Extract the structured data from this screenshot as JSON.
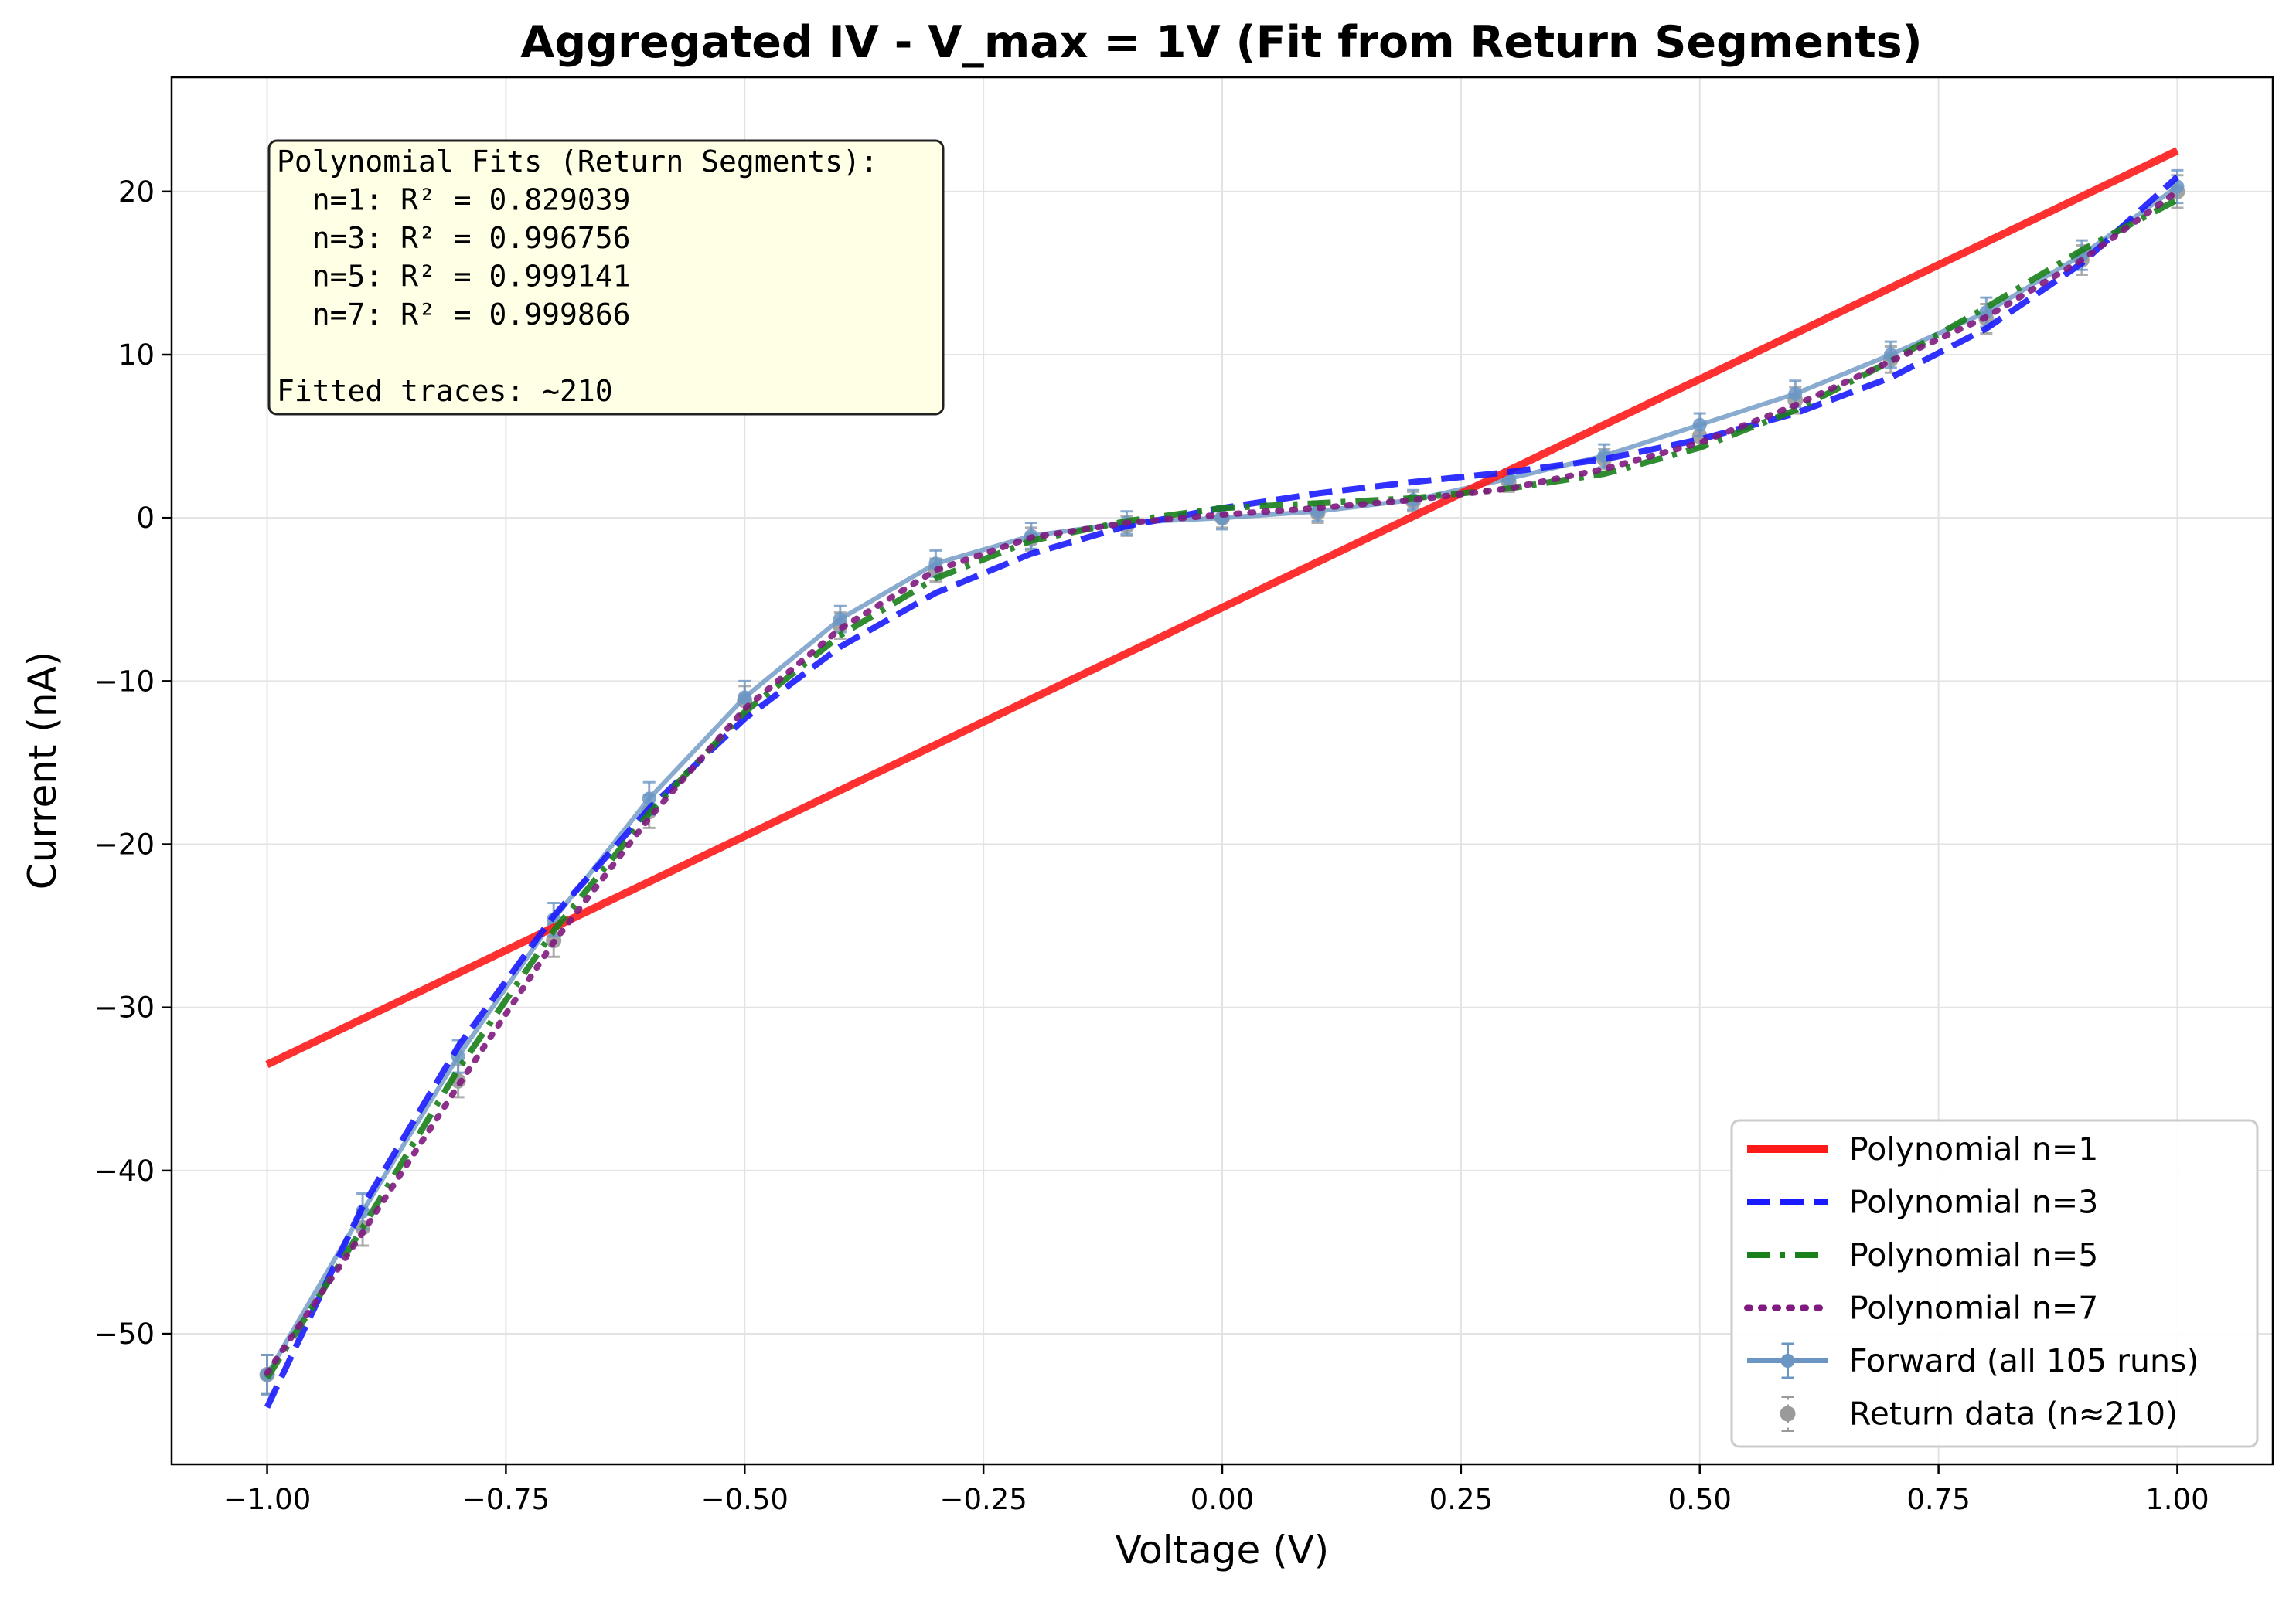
{
  "chart_data": {
    "type": "line",
    "title": "Aggregated IV - V_max = 1V (Fit from Return Segments)",
    "xlabel": "Voltage (V)",
    "ylabel": "Current (nA)",
    "xlim": [
      -1.1,
      1.1
    ],
    "ylim": [
      -58,
      27
    ],
    "xticks": [
      -1.0,
      -0.75,
      -0.5,
      -0.25,
      0.0,
      0.25,
      0.5,
      0.75,
      1.0
    ],
    "xtick_labels": [
      "−1.00",
      "−0.75",
      "−0.50",
      "−0.25",
      "0.00",
      "0.25",
      "0.50",
      "0.75",
      "1.00"
    ],
    "yticks": [
      -50,
      -40,
      -30,
      -20,
      -10,
      0,
      10,
      20
    ],
    "ytick_labels": [
      "−50",
      "−40",
      "−30",
      "−20",
      "−10",
      "0",
      "10",
      "20"
    ],
    "grid": true,
    "legend_position": "lower-right",
    "x": [
      -1.0,
      -0.9,
      -0.8,
      -0.7,
      -0.6,
      -0.5,
      -0.4,
      -0.3,
      -0.2,
      -0.1,
      0.0,
      0.1,
      0.2,
      0.3,
      0.4,
      0.5,
      0.6,
      0.7,
      0.8,
      0.9,
      1.0
    ],
    "series": [
      {
        "name": "Polynomial n=1",
        "style": "solid",
        "color": "#ff1a1a",
        "values": [
          -33.5,
          -30.7,
          -27.9,
          -25.1,
          -22.3,
          -19.5,
          -16.7,
          -13.9,
          -11.1,
          -8.3,
          -5.5,
          -2.7,
          0.1,
          2.9,
          5.7,
          8.5,
          11.3,
          14.1,
          16.9,
          19.7,
          22.5
        ]
      },
      {
        "name": "Polynomial n=3",
        "style": "dashed",
        "color": "#1a1aff",
        "x": [
          -1.0,
          -0.9,
          -0.8,
          -0.7,
          -0.6,
          -0.5,
          -0.4,
          -0.3,
          -0.2,
          -0.1,
          0.0,
          0.1,
          0.2,
          0.3,
          0.4,
          0.5,
          0.6,
          0.7,
          0.8,
          0.9,
          1.0
        ],
        "values": [
          -54.5,
          -42.2,
          -32.4,
          -24.4,
          -17.8,
          -12.3,
          -7.9,
          -4.6,
          -2.2,
          -0.5,
          0.6,
          1.5,
          2.2,
          2.8,
          3.6,
          4.8,
          6.4,
          8.6,
          11.6,
          15.6,
          20.9
        ]
      },
      {
        "name": "Polynomial n=5",
        "style": "dashdot",
        "color": "#1a801a",
        "values": [
          -52.7,
          -43.5,
          -33.8,
          -25.3,
          -18.1,
          -11.9,
          -7.2,
          -3.7,
          -1.4,
          -0.2,
          0.6,
          0.9,
          1.2,
          1.8,
          2.7,
          4.3,
          6.6,
          9.6,
          12.9,
          16.4,
          19.5
        ]
      },
      {
        "name": "Polynomial n=7",
        "style": "dotted",
        "color": "#801a80",
        "values": [
          -52.4,
          -43.8,
          -34.8,
          -26.0,
          -18.4,
          -11.7,
          -6.8,
          -3.2,
          -1.2,
          -0.3,
          0.2,
          0.6,
          1.1,
          1.8,
          3.0,
          4.6,
          6.9,
          9.6,
          12.3,
          15.8,
          20.0
        ]
      },
      {
        "name": "Forward (all 105 runs)",
        "style": "errorbar-line",
        "color": "#6b96c4",
        "values": [
          -52.5,
          -42.5,
          -33.0,
          -24.6,
          -17.2,
          -11.0,
          -6.2,
          -2.8,
          -1.1,
          -0.3,
          0.0,
          0.4,
          1.1,
          2.4,
          3.8,
          5.7,
          7.6,
          10.0,
          12.6,
          16.1,
          20.3
        ],
        "errors": [
          1.2,
          1.1,
          1.0,
          1.0,
          1.0,
          1.0,
          0.8,
          0.8,
          0.8,
          0.7,
          0.7,
          0.6,
          0.6,
          0.6,
          0.7,
          0.7,
          0.8,
          0.8,
          0.9,
          0.9,
          1.0
        ]
      },
      {
        "name": "Return data (n≈210)",
        "style": "errorbar-points",
        "color": "#9a9a9a",
        "values": [
          -52.5,
          -43.5,
          -34.5,
          -25.9,
          -18.0,
          -11.2,
          -6.6,
          -3.2,
          -1.3,
          -0.5,
          0.0,
          0.3,
          1.0,
          2.2,
          3.6,
          5.0,
          7.2,
          9.7,
          12.2,
          15.8,
          20.0
        ],
        "errors": [
          1.2,
          1.1,
          1.0,
          1.0,
          1.0,
          0.9,
          0.8,
          0.7,
          0.7,
          0.6,
          0.6,
          0.6,
          0.6,
          0.6,
          0.6,
          0.7,
          0.8,
          0.8,
          0.9,
          0.9,
          1.0
        ]
      }
    ],
    "annotation": {
      "lines": [
        "Polynomial Fits (Return Segments):",
        "  n=1: R² = 0.829039",
        "  n=3: R² = 0.996756",
        "  n=5: R² = 0.999141",
        "  n=7: R² = 0.999866",
        "",
        "Fitted traces: ~210"
      ],
      "background": "#ffffe6",
      "position": "top-left"
    }
  }
}
